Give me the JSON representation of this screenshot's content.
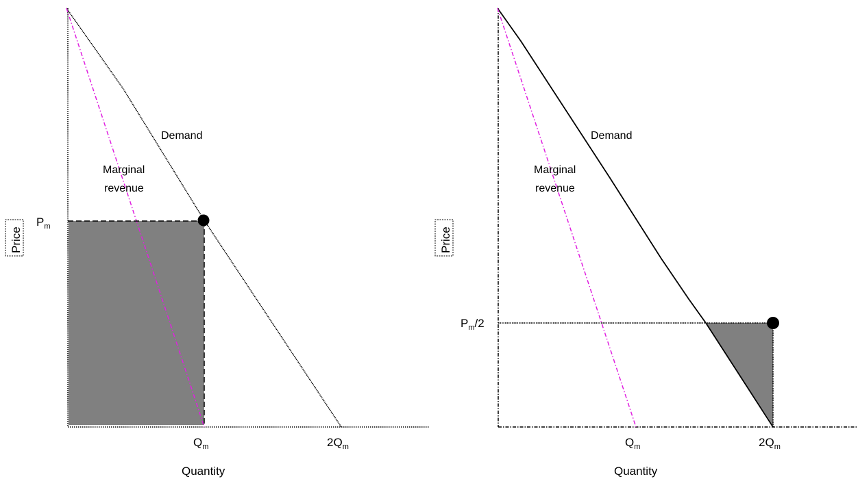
{
  "colors": {
    "demand": "#000000",
    "marginal_revenue": "#e020e0",
    "shaded": "#808080",
    "axes": "#000000"
  },
  "panels": [
    {
      "demand_label": "Demand",
      "mr_label_line1": "Marginal",
      "mr_label_line2": "revenue",
      "y_axis_label": "Price",
      "x_axis_label": "Quantity",
      "price_tick": {
        "main": "P",
        "sub": "m",
        "suffix": ""
      },
      "x_ticks": [
        {
          "main": "Q",
          "sub": "m"
        },
        {
          "main": "2Q",
          "sub": "m"
        }
      ]
    },
    {
      "demand_label": "Demand",
      "mr_label_line1": "Marginal",
      "mr_label_line2": "revenue",
      "y_axis_label": "Price",
      "x_axis_label": "Quantity",
      "price_tick": {
        "main": "P",
        "sub": "m",
        "suffix": "/2"
      },
      "x_ticks": [
        {
          "main": "Q",
          "sub": "m"
        },
        {
          "main": "2Q",
          "sub": "m"
        }
      ]
    }
  ]
}
